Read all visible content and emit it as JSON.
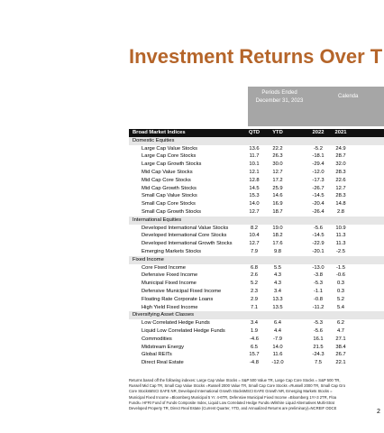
{
  "header": {
    "title": "Investment Returns Over T"
  },
  "table": {
    "period_header": [
      "Periods Ended",
      "December 31, 2023"
    ],
    "calendar_header": "Calenda",
    "columns": [
      "Broad Market Indices",
      "QTD",
      "YTD",
      "2022",
      "2021"
    ],
    "sections": [
      {
        "name": "Domestic Equities",
        "rows": [
          [
            "Large Cap Value Stocks",
            "13.6",
            "22.2",
            "-5.2",
            "24.9"
          ],
          [
            "Large Cap Core Stocks",
            "11.7",
            "26.3",
            "-18.1",
            "28.7"
          ],
          [
            "Large Cap Growth Stocks",
            "10.1",
            "30.0",
            "-29.4",
            "32.0"
          ],
          [
            "Mid Cap Value Stocks",
            "12.1",
            "12.7",
            "-12.0",
            "28.3"
          ],
          [
            "Mid Cap Core Stocks",
            "12.8",
            "17.2",
            "-17.3",
            "22.6"
          ],
          [
            "Mid Cap Growth Stocks",
            "14.5",
            "25.9",
            "-26.7",
            "12.7"
          ],
          [
            "Small Cap Value Stocks",
            "15.3",
            "14.6",
            "-14.5",
            "28.3"
          ],
          [
            "Small Cap Core Stocks",
            "14.0",
            "16.9",
            "-20.4",
            "14.8"
          ],
          [
            "Small Cap Growth Stocks",
            "12.7",
            "18.7",
            "-26.4",
            "2.8"
          ]
        ]
      },
      {
        "name": "International Equities",
        "rows": [
          [
            "Developed International Value Stocks",
            "8.2",
            "19.0",
            "-5.6",
            "10.9"
          ],
          [
            "Developed International Core Stocks",
            "10.4",
            "18.2",
            "-14.5",
            "11.3"
          ],
          [
            "Developed International Growth Stocks",
            "12.7",
            "17.6",
            "-22.9",
            "11.3"
          ],
          [
            "Emerging Markets Stocks",
            "7.9",
            "9.8",
            "-20.1",
            "-2.5"
          ]
        ]
      },
      {
        "name": "Fixed Income",
        "rows": [
          [
            "Core Fixed Income",
            "6.8",
            "5.5",
            "-13.0",
            "-1.5"
          ],
          [
            "Defensive Fixed Income",
            "2.6",
            "4.3",
            "-3.8",
            "-0.6"
          ],
          [
            "Municipal Fixed Income",
            "5.2",
            "4.3",
            "-5.3",
            "0.3"
          ],
          [
            "Defensive Municipal Fixed Income",
            "2.3",
            "3.4",
            "-1.1",
            "0.3"
          ],
          [
            "Floating Rate Corporate Loans",
            "2.9",
            "13.3",
            "-0.8",
            "5.2"
          ],
          [
            "High Yield Fixed Income",
            "7.1",
            "13.5",
            "-11.2",
            "5.4"
          ]
        ]
      },
      {
        "name": "Diversifying Asset Classes",
        "rows": [
          [
            "Low Correlated Hedge Funds",
            "3.4",
            "6.4",
            "-5.3",
            "6.2"
          ],
          [
            "Liquid Low Correlated Hedge Funds",
            "1.9",
            "4.4",
            "-5.6",
            "4.7"
          ],
          [
            "Commodities",
            "-4.6",
            "-7.9",
            "16.1",
            "27.1"
          ],
          [
            "Midstream Energy",
            "6.5",
            "14.0",
            "21.5",
            "38.4"
          ],
          [
            "Global REITs",
            "15.7",
            "11.6",
            "-24.3",
            "26.7"
          ],
          [
            "Direct Real Estate",
            "-4.8",
            "-12.0",
            "7.5",
            "22.1"
          ]
        ]
      }
    ]
  },
  "footnote": [
    "Returns based off the following indexes: Large Cap Value Stocks = S&P 500 Value TR, Large Cap Core Stocks = S&P 500 TR,",
    "Russell Mid Cap TR, Small Cap Value Stocks =Russell 2000 Value TR, Small Cap Core Stocks =Russell 2000 TR, Small Cap Gro",
    "Core StocksMSCI EAFE NR, Developed International Growth StocksMSCI EAFE Growth NR, Emerging Markets Stocks =",
    "Municipal Fixed Income =Bloomberg Municipal 5 Yr. 4-6TR, Defensive Municipal Fixed Income =Bloomberg 1Yr-3 2TR, Floa",
    "Funds= HFRI Fund of Funds Composite Index, Liquid Low Correlated Hedge Funds=Wilshire Liquid Alternatives Multi-Strat",
    "Developed Property TR, Direct Real Estate (Current Quarter, YTD, and Annualized Returns are preliminary)=NCREIF ODCE"
  ],
  "page_number": "2"
}
